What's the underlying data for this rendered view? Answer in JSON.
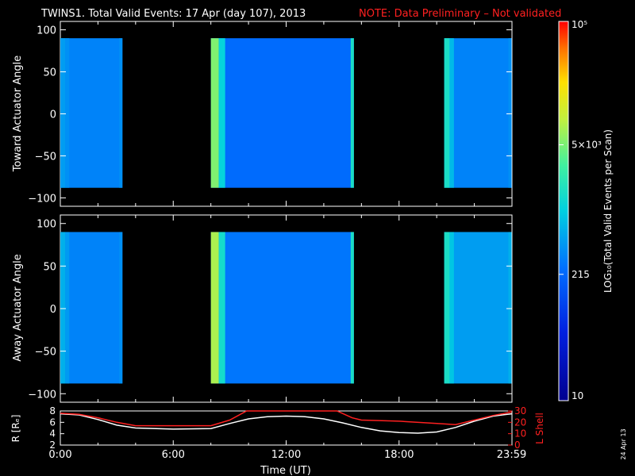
{
  "title": "TWINS1. Total Valid Events: 17 Apr (day 107), 2013",
  "note": "NOTE: Data Preliminary – Not validated",
  "date_stamp": "24 Apr 13",
  "colors": {
    "background": "#000000",
    "note": "#ff2020",
    "r_line": "#ffffff",
    "lshell_line": "#ff2020"
  },
  "chart_data": [
    {
      "type": "heatmap",
      "name": "toward-panel",
      "ylabel": "Toward Actuator Angle",
      "ylim": [
        -110,
        110
      ],
      "yticks": [
        "100",
        "50",
        "0",
        "−50",
        "−100"
      ],
      "ytick_values": [
        100,
        50,
        0,
        -50,
        -100
      ],
      "angle_range": [
        -88,
        90
      ],
      "blocks": [
        {
          "t_start": 0.0,
          "t_end": 3.3,
          "level": 0.38,
          "level_start": 0.42,
          "level_end": 0.4
        },
        {
          "t_start": 8.0,
          "t_end": 15.6,
          "level": 0.34,
          "level_start": 0.68,
          "level_end": 0.55
        },
        {
          "t_start": 20.4,
          "t_end": 23.98,
          "level": 0.38,
          "level_start": 0.55,
          "level_end": 0.4
        }
      ]
    },
    {
      "type": "heatmap",
      "name": "away-panel",
      "ylabel": "Away Actuator Angle",
      "ylim": [
        -110,
        110
      ],
      "yticks": [
        "100",
        "50",
        "0",
        "−50",
        "−100"
      ],
      "ytick_values": [
        100,
        50,
        0,
        -50,
        -100
      ],
      "angle_range": [
        -88,
        90
      ],
      "blocks": [
        {
          "t_start": 0.0,
          "t_end": 3.3,
          "level": 0.38,
          "level_start": 0.45,
          "level_end": 0.4
        },
        {
          "t_start": 8.0,
          "t_end": 15.6,
          "level": 0.36,
          "level_start": 0.72,
          "level_end": 0.55
        },
        {
          "t_start": 20.4,
          "t_end": 23.98,
          "level": 0.42,
          "level_start": 0.55,
          "level_end": 0.45
        }
      ]
    },
    {
      "type": "line",
      "name": "orbit-panel",
      "xlabel": "Time (UT)",
      "xticks": [
        "0:00",
        "6:00",
        "12:00",
        "18:00",
        "23:59"
      ],
      "xtick_values": [
        0,
        6,
        12,
        18,
        23.98
      ],
      "xlim": [
        0,
        24
      ],
      "ylabel_left": "R [Rₑ]",
      "ylim_left": [
        2,
        8
      ],
      "yticks_left": [
        "8",
        "6",
        "4",
        "2"
      ],
      "ytick_values_left": [
        8,
        6,
        4,
        2
      ],
      "ylabel_right": "L Shell",
      "ylim_right": [
        0,
        30
      ],
      "yticks_right": [
        "30",
        "20",
        "10",
        "0"
      ],
      "ytick_values_right": [
        30,
        20,
        10,
        0
      ],
      "series": [
        {
          "name": "R [Rₑ]",
          "axis": "left",
          "x": [
            0,
            1,
            2,
            3,
            4,
            6,
            8,
            9,
            10,
            11,
            12,
            13,
            14,
            15,
            16,
            17,
            18,
            19,
            20,
            21,
            22,
            23,
            23.98
          ],
          "y": [
            7.5,
            7.3,
            6.5,
            5.5,
            5.0,
            4.8,
            4.9,
            5.8,
            6.6,
            7.0,
            7.1,
            7.0,
            6.6,
            5.9,
            5.1,
            4.5,
            4.2,
            4.1,
            4.3,
            5.1,
            6.2,
            7.1,
            7.5
          ]
        },
        {
          "name": "L Shell",
          "axis": "right",
          "x": [
            0,
            1,
            2,
            3,
            4,
            6,
            8,
            9,
            9.9,
            14.7,
            15.5,
            16,
            18,
            20,
            21,
            22,
            23,
            23.98
          ],
          "y": [
            28,
            27,
            24,
            20,
            17,
            17,
            17,
            22,
            31,
            31,
            24,
            22,
            21,
            19,
            18,
            22,
            26,
            29
          ]
        }
      ]
    },
    {
      "type": "heatmap",
      "name": "colorbar",
      "label": "LOG₁₀(Total Valid Events per Scan)",
      "scale": "log",
      "range": [
        10,
        100000
      ],
      "tick_labels": [
        "10⁵",
        "5×10³",
        "215",
        "10"
      ],
      "tick_values": [
        100000,
        5000,
        215,
        10
      ]
    }
  ]
}
